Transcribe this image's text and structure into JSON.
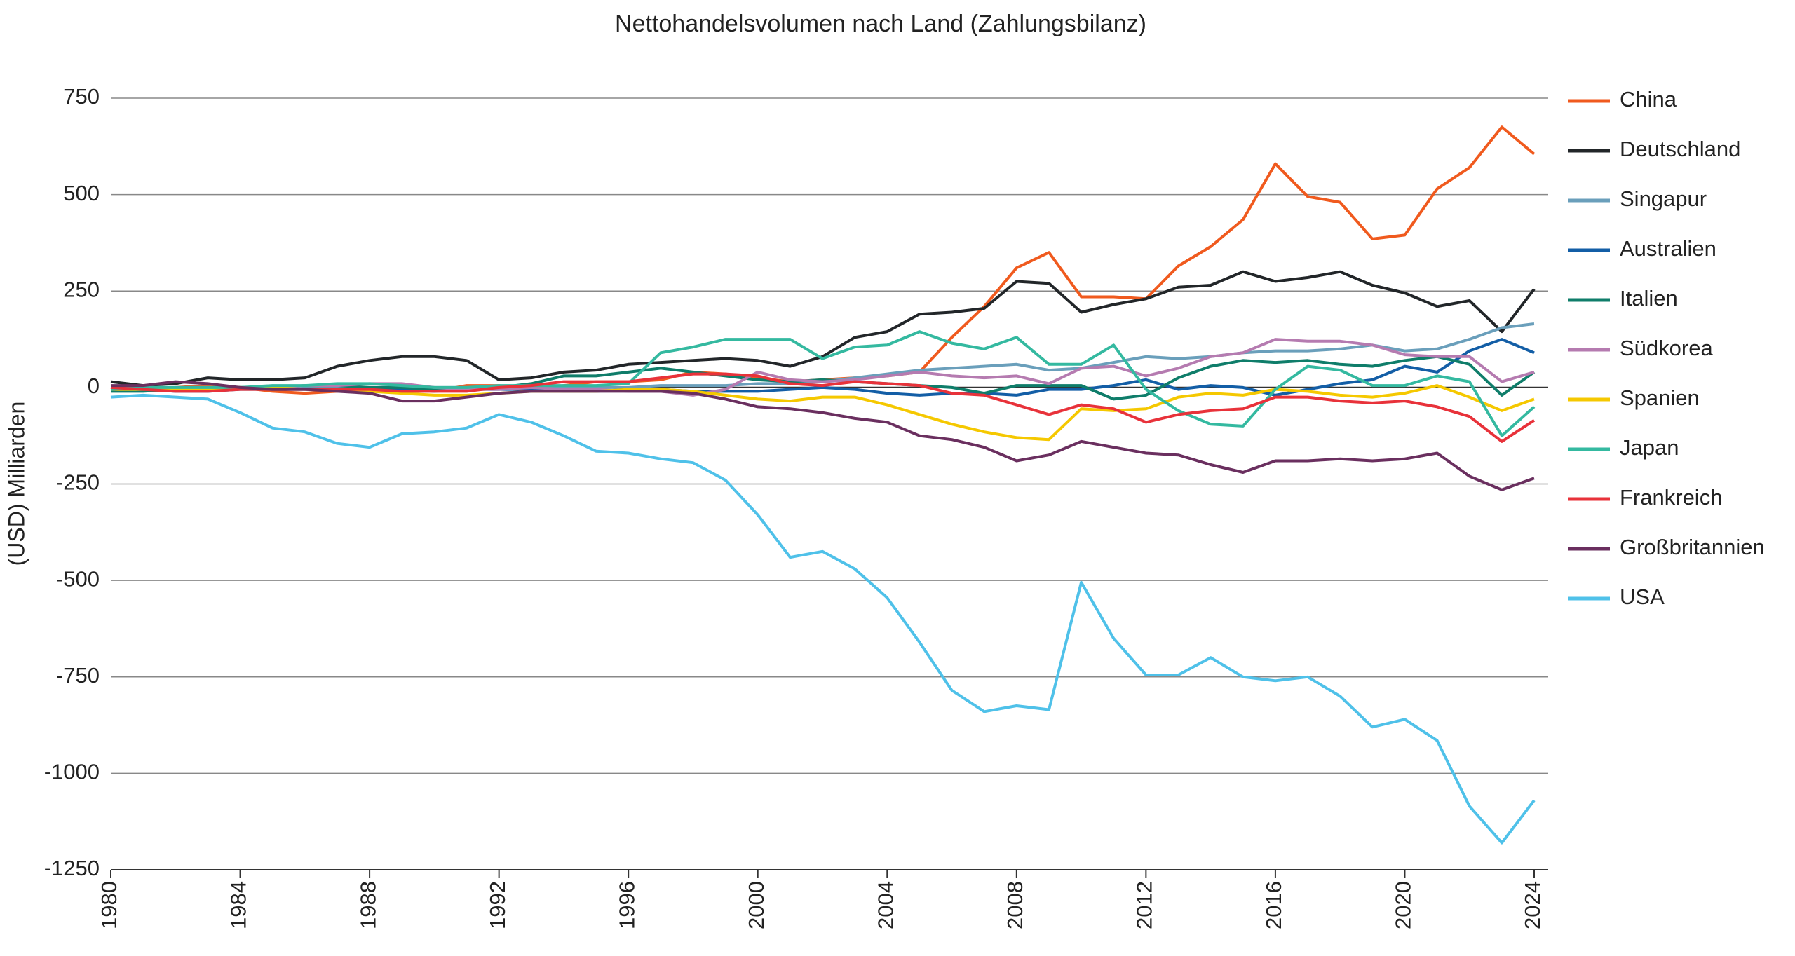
{
  "chart_data": {
    "type": "line",
    "title": "Nettohandelsvolumen nach Land (Zahlungsbilanz)",
    "y_label": "(USD) Milliarden",
    "x": [
      1980,
      1981,
      1982,
      1983,
      1984,
      1985,
      1986,
      1987,
      1988,
      1989,
      1990,
      1991,
      1992,
      1993,
      1994,
      1995,
      1996,
      1997,
      1998,
      1999,
      2000,
      2001,
      2002,
      2003,
      2004,
      2005,
      2006,
      2007,
      2008,
      2009,
      2010,
      2011,
      2012,
      2013,
      2014,
      2015,
      2016,
      2017,
      2018,
      2019,
      2020,
      2021,
      2022,
      2023,
      2024
    ],
    "xlim": [
      1980,
      2024
    ],
    "xticks": [
      1980,
      1984,
      1988,
      1992,
      1996,
      2000,
      2004,
      2008,
      2012,
      2016,
      2020,
      2024
    ],
    "ylim": [
      -1250,
      750
    ],
    "yticks": [
      750,
      500,
      250,
      0,
      -250,
      -500,
      -750,
      -1000,
      -1250
    ],
    "grid": true,
    "legend": "right",
    "series": [
      {
        "name": "China",
        "color": "#f05a1e",
        "values": [
          0,
          -5,
          0,
          5,
          0,
          -10,
          -15,
          -10,
          -5,
          -5,
          -10,
          5,
          5,
          -10,
          5,
          15,
          15,
          20,
          40,
          35,
          25,
          15,
          20,
          25,
          30,
          40,
          130,
          210,
          310,
          350,
          235,
          235,
          230,
          315,
          365,
          435,
          580,
          495,
          480,
          385,
          395,
          515,
          570,
          675,
          605
        ]
      },
      {
        "name": "Deutschland",
        "color": "#222629",
        "values": [
          15,
          5,
          10,
          25,
          20,
          20,
          25,
          55,
          70,
          80,
          80,
          70,
          20,
          25,
          40,
          45,
          60,
          65,
          70,
          75,
          70,
          55,
          80,
          130,
          145,
          190,
          195,
          205,
          275,
          270,
          195,
          215,
          230,
          260,
          265,
          300,
          275,
          285,
          300,
          265,
          245,
          210,
          225,
          145,
          255
        ]
      },
      {
        "name": "Singapur",
        "color": "#6a9fbb",
        "values": [
          0,
          0,
          0,
          0,
          0,
          0,
          0,
          0,
          0,
          0,
          0,
          0,
          0,
          0,
          0,
          0,
          0,
          5,
          5,
          5,
          10,
          10,
          15,
          25,
          35,
          45,
          50,
          55,
          60,
          45,
          50,
          65,
          80,
          75,
          80,
          90,
          95,
          95,
          100,
          110,
          95,
          100,
          125,
          155,
          165
        ]
      },
      {
        "name": "Australien",
        "color": "#135ea6",
        "values": [
          -5,
          -5,
          -10,
          -10,
          -5,
          -5,
          -5,
          -5,
          -5,
          -5,
          -10,
          -5,
          -5,
          -5,
          -10,
          -10,
          -5,
          -5,
          -10,
          -10,
          -10,
          -5,
          0,
          -5,
          -15,
          -20,
          -15,
          -15,
          -20,
          -5,
          -5,
          5,
          20,
          -5,
          5,
          0,
          -20,
          -5,
          10,
          20,
          55,
          40,
          95,
          125,
          90
        ]
      },
      {
        "name": "Italien",
        "color": "#0f7d6a",
        "values": [
          -10,
          -10,
          -5,
          0,
          0,
          0,
          5,
          5,
          0,
          0,
          -5,
          -5,
          0,
          10,
          30,
          30,
          40,
          50,
          40,
          30,
          20,
          15,
          20,
          15,
          10,
          5,
          0,
          -15,
          5,
          5,
          5,
          -30,
          -20,
          25,
          55,
          70,
          65,
          70,
          60,
          55,
          70,
          80,
          60,
          -20,
          40
        ]
      },
      {
        "name": "Südkorea",
        "color": "#b57bb0",
        "values": [
          -5,
          -5,
          -5,
          -5,
          0,
          0,
          5,
          5,
          10,
          10,
          0,
          -5,
          -5,
          0,
          -5,
          -5,
          -10,
          -10,
          -20,
          -5,
          40,
          20,
          15,
          20,
          30,
          40,
          30,
          25,
          30,
          10,
          50,
          55,
          30,
          50,
          80,
          90,
          125,
          120,
          120,
          110,
          85,
          80,
          80,
          15,
          40
        ]
      },
      {
        "name": "Spanien",
        "color": "#f5c800",
        "values": [
          -5,
          -5,
          -5,
          -5,
          0,
          0,
          -5,
          -5,
          -10,
          -15,
          -20,
          -20,
          -15,
          -10,
          -10,
          -10,
          -5,
          -5,
          -10,
          -20,
          -30,
          -35,
          -25,
          -25,
          -45,
          -70,
          -95,
          -115,
          -130,
          -135,
          -55,
          -60,
          -55,
          -25,
          -15,
          -20,
          -5,
          -10,
          -20,
          -25,
          -15,
          5,
          -25,
          -60,
          -30
        ]
      },
      {
        "name": "Japan",
        "color": "#34b9a0",
        "values": [
          -5,
          0,
          0,
          0,
          0,
          5,
          5,
          10,
          10,
          5,
          0,
          0,
          5,
          5,
          5,
          5,
          10,
          90,
          105,
          125,
          125,
          125,
          75,
          105,
          110,
          145,
          115,
          100,
          130,
          60,
          60,
          110,
          -5,
          -60,
          -95,
          -100,
          -5,
          55,
          45,
          5,
          5,
          30,
          15,
          -125,
          -50
        ]
      },
      {
        "name": "Frankreich",
        "color": "#e8323a",
        "values": [
          0,
          -5,
          -10,
          -10,
          -5,
          -5,
          -5,
          -5,
          -5,
          -10,
          -10,
          -10,
          0,
          5,
          15,
          15,
          15,
          25,
          35,
          35,
          30,
          10,
          5,
          15,
          10,
          5,
          -15,
          -20,
          -45,
          -70,
          -45,
          -55,
          -90,
          -70,
          -60,
          -55,
          -25,
          -25,
          -35,
          -40,
          -35,
          -50,
          -75,
          -140,
          -85
        ]
      },
      {
        "name": "Großbritannien",
        "color": "#6a2f5f",
        "values": [
          5,
          5,
          15,
          10,
          0,
          -5,
          -5,
          -10,
          -15,
          -35,
          -35,
          -25,
          -15,
          -10,
          -10,
          -10,
          -10,
          -10,
          -15,
          -30,
          -50,
          -55,
          -65,
          -80,
          -90,
          -125,
          -135,
          -155,
          -190,
          -175,
          -140,
          -155,
          -170,
          -175,
          -200,
          -220,
          -190,
          -190,
          -185,
          -190,
          -185,
          -170,
          -230,
          -265,
          -235
        ]
      },
      {
        "name": "USA",
        "color": "#4fc1e9",
        "values": [
          -25,
          -20,
          -25,
          -30,
          -65,
          -105,
          -115,
          -145,
          -155,
          -120,
          -115,
          -105,
          -70,
          -90,
          -125,
          -165,
          -170,
          -185,
          -195,
          -240,
          -330,
          -440,
          -425,
          -470,
          -545,
          -660,
          -785,
          -840,
          -825,
          -835,
          -505,
          -650,
          -745,
          -745,
          -700,
          -750,
          -760,
          -750,
          -800,
          -880,
          -860,
          -915,
          -1085,
          -1180,
          -1070
        ]
      }
    ]
  }
}
